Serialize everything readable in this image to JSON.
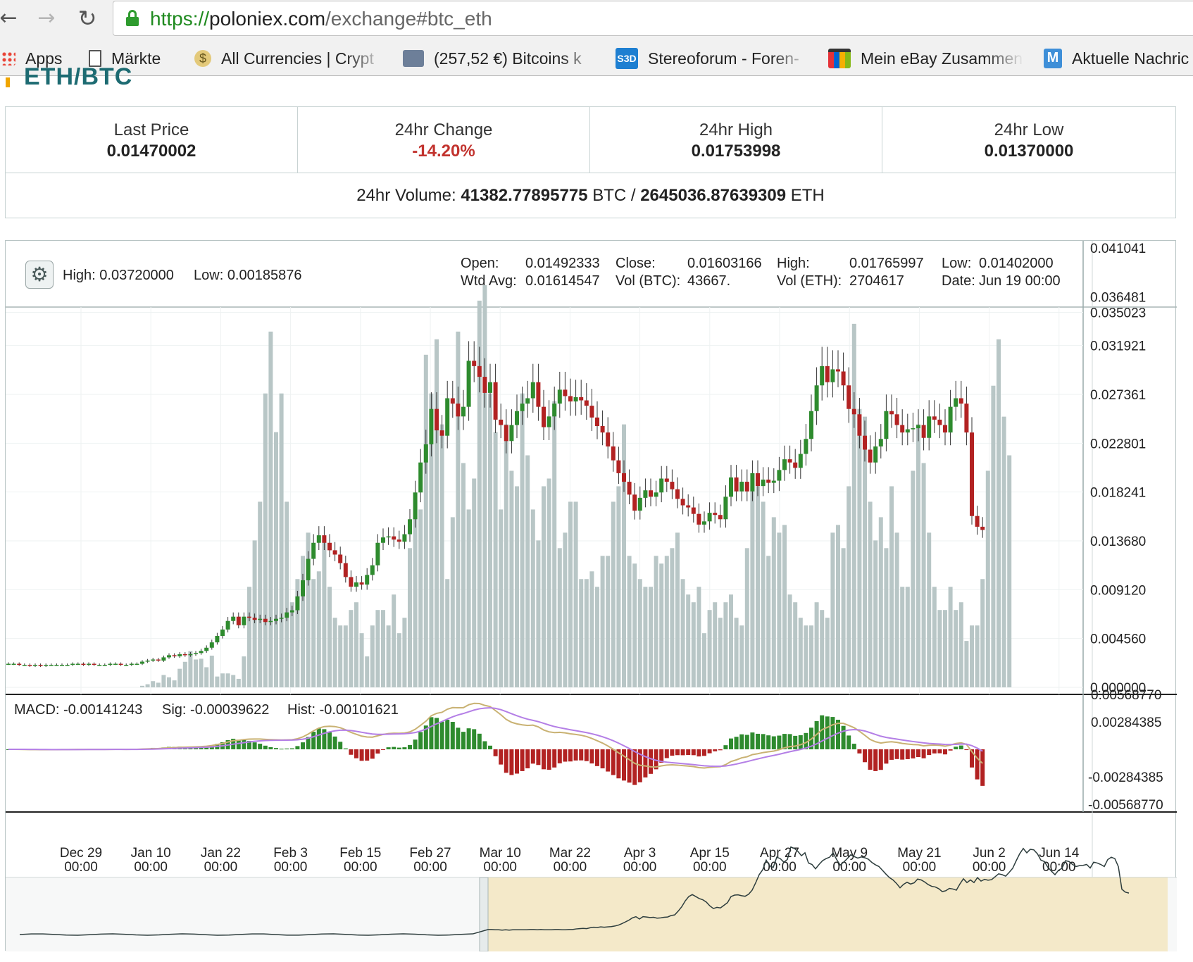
{
  "browser": {
    "url_scheme": "https://",
    "url_host": "poloniex.com",
    "url_path": "/exchange#btc_eth",
    "back_icon": "arrow-left-icon",
    "forward_icon": "arrow-right-icon",
    "reload_icon": "reload-icon",
    "bookmarks": [
      {
        "label": "Apps",
        "icon": "apps-grid-icon"
      },
      {
        "label": "Märkte",
        "icon": "page-icon"
      },
      {
        "label": "All Currencies | Crypt",
        "icon": "dollar-coin-icon"
      },
      {
        "label": "(257,52 €) Bitcoins k",
        "icon": "wallet-icon"
      },
      {
        "label": "Stereoforum - Foren-",
        "icon": "s3d-icon"
      },
      {
        "label": "Mein eBay Zusammen",
        "icon": "shopping-bag-icon"
      },
      {
        "label": "Aktuelle Nachric",
        "icon": "m-logo-icon"
      }
    ]
  },
  "page": {
    "pair_title": "ETH/BTC"
  },
  "stats": {
    "last_price_label": "Last Price",
    "last_price": "0.01470002",
    "change_label": "24hr Change",
    "change": "-14.20%",
    "high_label": "24hr High",
    "high": "0.01753998",
    "low_label": "24hr Low",
    "low": "0.01370000",
    "volume_label": "24hr Volume:",
    "volume_btc": "41382.77895775",
    "volume_btc_unit": "BTC /",
    "volume_eth": "2645036.87639309",
    "volume_eth_unit": "ETH"
  },
  "chart_info": {
    "settings_icon": "gear-icon",
    "range_high_label": "High:",
    "range_high": "0.03720000",
    "range_low_label": "Low:",
    "range_low": "0.00185876",
    "open_label": "Open:",
    "open": "0.01492333",
    "close_label": "Close:",
    "close": "0.01603166",
    "high_label": "High:",
    "high": "0.01765997",
    "low_label": "Low:",
    "low": "0.01402000",
    "wtd_label": "Wtd Avg:",
    "wtd": "0.01614547",
    "volbtc_label": "Vol (BTC):",
    "volbtc": "43667.",
    "voleth_label": "Vol (ETH):",
    "voleth": "2704617",
    "date_label": "Date:",
    "date": "Jun 19 00:00",
    "macd_label": "MACD:",
    "macd": "-0.00141243",
    "sig_label": "Sig:",
    "sig": "-0.00039622",
    "hist_label": "Hist:",
    "hist": "-0.00101621"
  },
  "chart_data": {
    "type": "candlestick",
    "price_axis_ticks": [
      "0.041041",
      "0.036481",
      "0.035023",
      "0.031921",
      "0.027361",
      "0.022801",
      "0.018241",
      "0.013680",
      "0.009120",
      "0.004560",
      "0.000000"
    ],
    "price_range": [
      0,
      0.041041
    ],
    "macd_axis_ticks": [
      "0.00568770",
      "0.00284385",
      "-0.00284385",
      "-0.00568770"
    ],
    "macd_range": [
      -0.0056877,
      0.0056877
    ],
    "x_ticks": [
      {
        "date": "Dec 29",
        "time": "00:00"
      },
      {
        "date": "Jan 10",
        "time": "00:00"
      },
      {
        "date": "Jan 22",
        "time": "00:00"
      },
      {
        "date": "Feb 3",
        "time": "00:00"
      },
      {
        "date": "Feb 15",
        "time": "00:00"
      },
      {
        "date": "Feb 27",
        "time": "00:00"
      },
      {
        "date": "Mar 10",
        "time": "00:00"
      },
      {
        "date": "Mar 22",
        "time": "00:00"
      },
      {
        "date": "Apr 3",
        "time": "00:00"
      },
      {
        "date": "Apr 15",
        "time": "00:00"
      },
      {
        "date": "Apr 27",
        "time": "00:00"
      },
      {
        "date": "May 9",
        "time": "00:00"
      },
      {
        "date": "May 21",
        "time": "00:00"
      },
      {
        "date": "Jun 2",
        "time": "00:00"
      },
      {
        "date": "Jun 14",
        "time": "00:00"
      }
    ],
    "x_start": "Dec 16",
    "close_prices": [
      0.0022,
      0.0022,
      0.0021,
      0.0021,
      0.002,
      0.0021,
      0.002,
      0.0021,
      0.0021,
      0.0021,
      0.0021,
      0.0021,
      0.0022,
      0.0022,
      0.0021,
      0.0022,
      0.0021,
      0.0021,
      0.0021,
      0.0022,
      0.0022,
      0.0021,
      0.0021,
      0.0022,
      0.0022,
      0.0024,
      0.0025,
      0.0026,
      0.0025,
      0.0028,
      0.003,
      0.0029,
      0.0031,
      0.003,
      0.0031,
      0.0032,
      0.0034,
      0.0037,
      0.0042,
      0.0048,
      0.0054,
      0.0062,
      0.0066,
      0.0058,
      0.0066,
      0.0065,
      0.0063,
      0.0064,
      0.0061,
      0.0062,
      0.0064,
      0.0065,
      0.007,
      0.0072,
      0.0085,
      0.01,
      0.012,
      0.0135,
      0.0142,
      0.0135,
      0.0128,
      0.0124,
      0.0116,
      0.0103,
      0.0094,
      0.0098,
      0.0096,
      0.0105,
      0.0114,
      0.0135,
      0.014,
      0.0141,
      0.0138,
      0.0136,
      0.0143,
      0.0157,
      0.0182,
      0.021,
      0.0227,
      0.026,
      0.024,
      0.0235,
      0.027,
      0.0265,
      0.0253,
      0.0262,
      0.0305,
      0.03,
      0.029,
      0.0275,
      0.0285,
      0.025,
      0.0245,
      0.023,
      0.0245,
      0.0258,
      0.0265,
      0.027,
      0.0285,
      0.0262,
      0.0243,
      0.0253,
      0.0265,
      0.0278,
      0.0272,
      0.0267,
      0.0271,
      0.0268,
      0.0263,
      0.0252,
      0.0244,
      0.0238,
      0.0225,
      0.0212,
      0.02,
      0.0192,
      0.018,
      0.0165,
      0.0177,
      0.0184,
      0.0178,
      0.0182,
      0.0195,
      0.0192,
      0.0185,
      0.0176,
      0.017,
      0.0168,
      0.0162,
      0.0152,
      0.0155,
      0.0163,
      0.0161,
      0.0157,
      0.0178,
      0.0196,
      0.0183,
      0.0192,
      0.0183,
      0.02,
      0.0188,
      0.0194,
      0.0191,
      0.0193,
      0.0203,
      0.0213,
      0.021,
      0.0205,
      0.0218,
      0.0232,
      0.0258,
      0.0282,
      0.03,
      0.0285,
      0.0297,
      0.0295,
      0.0282,
      0.026,
      0.0255,
      0.0235,
      0.0222,
      0.021,
      0.0225,
      0.0232,
      0.0258,
      0.0255,
      0.0245,
      0.0238,
      0.0241,
      0.0242,
      0.0245,
      0.0233,
      0.0253,
      0.025,
      0.0245,
      0.0238,
      0.0262,
      0.027,
      0.0265,
      0.0238,
      0.016,
      0.015,
      0.0147
    ],
    "volume_btc": [
      0,
      0,
      0,
      0,
      0,
      0,
      0,
      0,
      0,
      0,
      0,
      0,
      0,
      0,
      0,
      0,
      0,
      0,
      0,
      0,
      0,
      0,
      0,
      0,
      0,
      200,
      400,
      800,
      600,
      1600,
      1300,
      900,
      2400,
      3300,
      4700,
      3600,
      3700,
      2600,
      4100,
      1400,
      1800,
      1800,
      1600,
      1100,
      4000,
      13000,
      19000,
      24000,
      38000,
      46000,
      33000,
      38000,
      24000,
      11000,
      14000,
      17000,
      20000,
      14000,
      15000,
      19000,
      13000,
      9000,
      8000,
      8000,
      10000,
      11000,
      7000,
      4000,
      8000,
      10000,
      10000,
      8000,
      12000,
      7000,
      9000,
      18000,
      23000,
      23000,
      43000,
      38000,
      45000,
      34000,
      14000,
      22000,
      46000,
      29000,
      23000,
      27000,
      50000,
      52000,
      38000,
      33000,
      23000,
      34000,
      28000,
      26000,
      38000,
      30000,
      23000,
      19000,
      26000,
      27000,
      37000,
      18000,
      20000,
      24000,
      24000,
      14000,
      14000,
      15000,
      13000,
      17000,
      17000,
      24000,
      26000,
      34000,
      17000,
      16000,
      14000,
      13000,
      13000,
      17000,
      16000,
      17000,
      18000,
      20000,
      14000,
      12000,
      11000,
      13000,
      7000,
      10000,
      11000,
      9000,
      11000,
      12000,
      9000,
      8000,
      18000,
      26000,
      26000,
      24000,
      17000,
      22000,
      20000,
      21000,
      12000,
      11000,
      9000,
      8000,
      8000,
      11000,
      10000,
      9000,
      20000,
      21000,
      18000,
      26000,
      47000,
      36000,
      35000,
      24000,
      19000,
      22000,
      18000,
      26000,
      20000,
      13000,
      13000,
      28000,
      34000,
      29000,
      20000,
      13000,
      10000,
      10000,
      13000,
      10000,
      11000,
      6000,
      8000,
      8000,
      14000,
      28000,
      39000,
      45000,
      35000,
      30000
    ]
  }
}
